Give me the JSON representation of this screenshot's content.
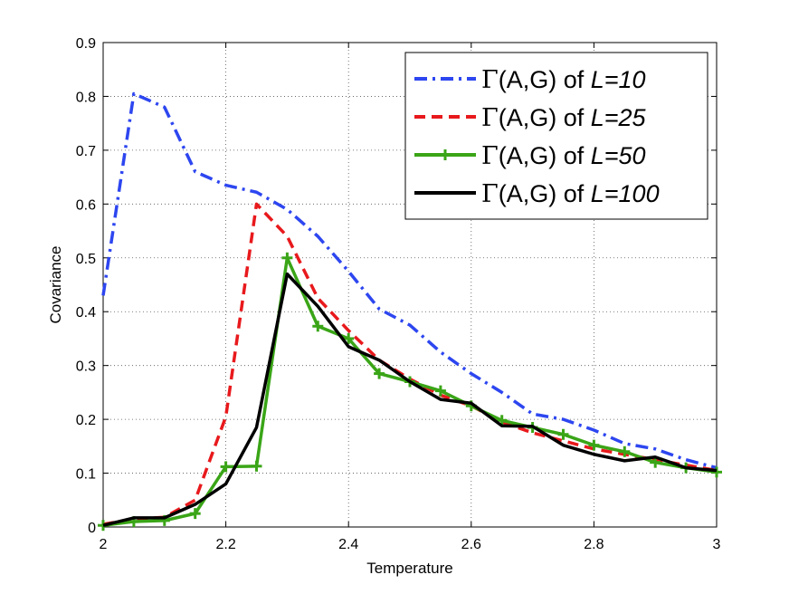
{
  "chart_data": {
    "type": "line",
    "xlabel": "Temperature",
    "ylabel": "Covariance",
    "xlim": [
      2,
      3
    ],
    "ylim": [
      0,
      0.9
    ],
    "xticks": [
      "2",
      "2.2",
      "2.4",
      "2.6",
      "2.8",
      "3"
    ],
    "yticks": [
      "0",
      "0.1",
      "0.2",
      "0.3",
      "0.4",
      "0.5",
      "0.6",
      "0.7",
      "0.8",
      "0.9"
    ],
    "grid": true,
    "legend_position": "top-right",
    "series": [
      {
        "name": "Γ(A,G) of L=10",
        "legend_prefix": "Γ",
        "legend_middle": "(A,G) of ",
        "legend_italic": "L=10",
        "color": "#2d46f0",
        "style": "dashdot",
        "marker": "none",
        "x": [
          2.0,
          2.05,
          2.1,
          2.15,
          2.2,
          2.25,
          2.3,
          2.35,
          2.4,
          2.45,
          2.5,
          2.55,
          2.6,
          2.65,
          2.7,
          2.75,
          2.8,
          2.85,
          2.9,
          2.95,
          3.0
        ],
        "y": [
          0.43,
          0.805,
          0.78,
          0.66,
          0.635,
          0.622,
          0.59,
          0.54,
          0.475,
          0.405,
          0.375,
          0.325,
          0.285,
          0.25,
          0.21,
          0.2,
          0.18,
          0.155,
          0.145,
          0.125,
          0.11
        ]
      },
      {
        "name": "Γ(A,G) of L=25",
        "legend_prefix": "Γ",
        "legend_middle": "(A,G) of ",
        "legend_italic": "L=25",
        "color": "#e8191c",
        "style": "dashed",
        "marker": "none",
        "x": [
          2.0,
          2.05,
          2.1,
          2.15,
          2.2,
          2.25,
          2.3,
          2.35,
          2.4,
          2.45,
          2.5,
          2.55,
          2.6,
          2.65,
          2.7,
          2.75,
          2.8,
          2.85,
          2.9,
          2.95,
          3.0
        ],
        "y": [
          0.005,
          0.015,
          0.018,
          0.05,
          0.205,
          0.6,
          0.54,
          0.425,
          0.365,
          0.31,
          0.275,
          0.245,
          0.225,
          0.195,
          0.175,
          0.16,
          0.145,
          0.135,
          0.125,
          0.115,
          0.105
        ]
      },
      {
        "name": "Γ(A,G) of L=50",
        "legend_prefix": "Γ",
        "legend_middle": "(A,G) of ",
        "legend_italic": "L=50",
        "color": "#3aa517",
        "style": "solid",
        "marker": "plus",
        "x": [
          2.0,
          2.05,
          2.1,
          2.15,
          2.2,
          2.25,
          2.3,
          2.35,
          2.4,
          2.45,
          2.5,
          2.55,
          2.6,
          2.65,
          2.7,
          2.75,
          2.8,
          2.85,
          2.9,
          2.95,
          3.0
        ],
        "y": [
          0.003,
          0.01,
          0.012,
          0.025,
          0.112,
          0.113,
          0.5,
          0.373,
          0.35,
          0.285,
          0.27,
          0.253,
          0.225,
          0.198,
          0.185,
          0.172,
          0.152,
          0.14,
          0.12,
          0.11,
          0.102
        ]
      },
      {
        "name": "Γ(A,G) of L=100",
        "legend_prefix": "Γ",
        "legend_middle": "(A,G) of ",
        "legend_italic": "L=100",
        "color": "#000000",
        "style": "solid",
        "marker": "none",
        "x": [
          2.0,
          2.05,
          2.1,
          2.15,
          2.2,
          2.25,
          2.3,
          2.35,
          2.4,
          2.45,
          2.5,
          2.55,
          2.6,
          2.65,
          2.7,
          2.75,
          2.8,
          2.85,
          2.9,
          2.95,
          3.0
        ],
        "y": [
          0.003,
          0.017,
          0.017,
          0.042,
          0.08,
          0.185,
          0.47,
          0.41,
          0.335,
          0.31,
          0.27,
          0.237,
          0.23,
          0.188,
          0.187,
          0.152,
          0.135,
          0.123,
          0.13,
          0.11,
          0.105
        ]
      }
    ]
  }
}
